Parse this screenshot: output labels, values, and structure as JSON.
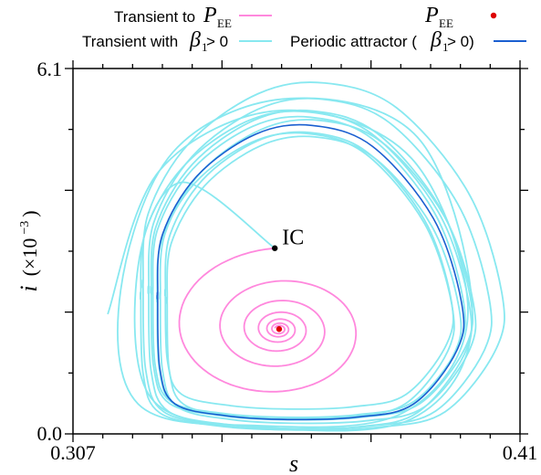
{
  "chart_data": {
    "type": "line",
    "title": "",
    "xlabel": "s",
    "ylabel": {
      "var": "i",
      "scale": "(×10",
      "exponent": "−3",
      "close": ")"
    },
    "xlim": [
      0.307,
      0.41
    ],
    "ylim": [
      0.0,
      6.1
    ],
    "x_ticks_labeled": [
      "0.307",
      "0.41"
    ],
    "y_ticks_labeled": [
      "0.0",
      "6.1"
    ],
    "grid": false,
    "legend": {
      "placement": "top",
      "entries": [
        {
          "label": "Transient to ",
          "math": "P",
          "sub": "EE",
          "color": "#ff88dd",
          "marker": "line"
        },
        {
          "label": "Transient with ",
          "math": "β",
          "sub": "1",
          "suffix": " > 0",
          "color": "#88e8f0",
          "marker": "line"
        },
        {
          "label": "",
          "math": "P",
          "sub": "EE",
          "color": "#dd0000",
          "marker": "dot"
        },
        {
          "label": "Periodic attractor (",
          "math": "β",
          "sub": "1",
          "suffix": " > 0)",
          "color": "#1a5fd0",
          "marker": "line"
        }
      ]
    },
    "annotations": [
      {
        "text": "IC",
        "x": 0.3535,
        "y": 3.1
      }
    ],
    "points": {
      "IC": {
        "x": 0.3535,
        "y": 3.1,
        "color": "#000000"
      },
      "P_EE": {
        "x": 0.3545,
        "y": 1.75,
        "color": "#dd0000"
      }
    },
    "series": [
      {
        "name": "Transient to P_EE",
        "color": "#ff88dd",
        "style": "spiral",
        "from": {
          "x": 0.3535,
          "y": 3.1
        },
        "to": {
          "x": 0.3545,
          "y": 1.75
        }
      },
      {
        "name": "Transient with β1 > 0",
        "color": "#88e8f0",
        "style": "outward-spiral-then-cycle",
        "x": [
          0.3535,
          0.332,
          0.322,
          0.325,
          0.35,
          0.385,
          0.399,
          0.387,
          0.357,
          0.33,
          0.318,
          0.322,
          0.349,
          0.383,
          0.398,
          0.385,
          0.355,
          0.327,
          0.315
        ],
        "y": [
          3.1,
          4.2,
          2.8,
          0.6,
          0.12,
          0.25,
          1.9,
          4.9,
          5.6,
          4.7,
          2.4,
          0.5,
          0.14,
          0.35,
          2.0,
          4.6,
          5.4,
          4.4,
          2.0
        ]
      },
      {
        "name": "Periodic attractor (β1 > 0)",
        "color": "#1a5fd0",
        "style": "closed-orbit",
        "x": [
          0.3265,
          0.327,
          0.3305,
          0.3425,
          0.3565,
          0.3725,
          0.3855,
          0.3955,
          0.3965,
          0.39,
          0.376,
          0.362,
          0.349,
          0.3355,
          0.3275,
          0.3265
        ],
        "y": [
          2.3,
          1.1,
          0.5,
          0.3,
          0.24,
          0.28,
          0.5,
          1.4,
          2.2,
          3.6,
          4.8,
          5.15,
          5.0,
          4.3,
          3.3,
          2.3
        ]
      }
    ]
  }
}
